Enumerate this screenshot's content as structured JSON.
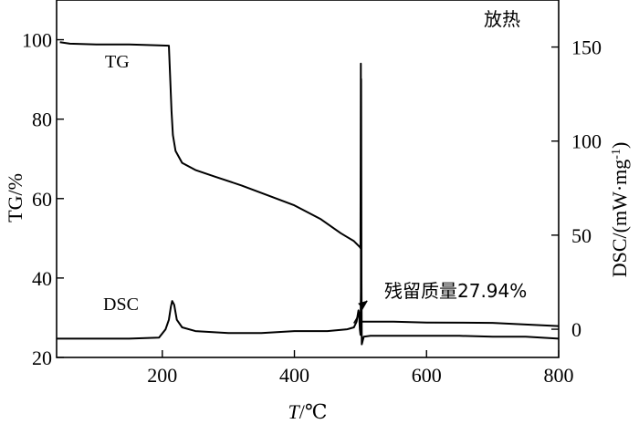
{
  "chart_data": {
    "type": "line",
    "xlabel": {
      "italic": "T",
      "rest": "/℃"
    },
    "ylabel_left": "TG/%",
    "ylabel_right": "DSC/(mW·mg",
    "ylabel_right_sup": "-1",
    "ylabel_right_close": ")",
    "xlim": [
      40,
      800
    ],
    "ylim_left": [
      20,
      110
    ],
    "ylim_right": [
      -15,
      175
    ],
    "x_ticks": [
      200,
      400,
      600,
      800
    ],
    "y_left_ticks": [
      20,
      40,
      60,
      80,
      100
    ],
    "y_right_ticks": [
      0,
      50,
      100,
      150
    ],
    "exo_label": "放热",
    "series": [
      {
        "name": "TG",
        "axis": "left",
        "points": [
          [
            45,
            99.4
          ],
          [
            60,
            99.0
          ],
          [
            100,
            98.8
          ],
          [
            150,
            98.8
          ],
          [
            195,
            98.6
          ],
          [
            210,
            98.5
          ],
          [
            212,
            90.0
          ],
          [
            214,
            82.0
          ],
          [
            216,
            76.0
          ],
          [
            220,
            72.0
          ],
          [
            230,
            69.0
          ],
          [
            250,
            67.2
          ],
          [
            280,
            65.5
          ],
          [
            320,
            63.3
          ],
          [
            360,
            60.8
          ],
          [
            400,
            58.3
          ],
          [
            440,
            54.8
          ],
          [
            470,
            51.3
          ],
          [
            490,
            49.3
          ],
          [
            499,
            47.8
          ],
          [
            500,
            47.5
          ],
          [
            500.5,
            94.0
          ],
          [
            501,
            29.0
          ],
          [
            505,
            29.0
          ],
          [
            550,
            29.0
          ],
          [
            600,
            28.8
          ],
          [
            700,
            28.7
          ],
          [
            800,
            27.9
          ]
        ]
      },
      {
        "name": "DSC",
        "axis": "right",
        "points": [
          [
            40,
            -5
          ],
          [
            100,
            -5
          ],
          [
            150,
            -5
          ],
          [
            195,
            -4.5
          ],
          [
            205,
            0
          ],
          [
            210,
            5
          ],
          [
            213,
            12
          ],
          [
            215,
            15
          ],
          [
            218,
            13
          ],
          [
            222,
            5
          ],
          [
            230,
            1
          ],
          [
            250,
            -1
          ],
          [
            300,
            -2
          ],
          [
            350,
            -2
          ],
          [
            400,
            -1
          ],
          [
            450,
            -1
          ],
          [
            480,
            0
          ],
          [
            490,
            1
          ],
          [
            494,
            4
          ],
          [
            496,
            8
          ],
          [
            497,
            10
          ],
          [
            498,
            8
          ],
          [
            499,
            0
          ],
          [
            500,
            -3
          ],
          [
            500.5,
            20
          ],
          [
            501,
            133
          ],
          [
            501.5,
            25
          ],
          [
            502,
            -8
          ],
          [
            505,
            -4
          ],
          [
            515,
            -3.5
          ],
          [
            550,
            -3.5
          ],
          [
            600,
            -3.5
          ],
          [
            650,
            -3.5
          ],
          [
            700,
            -4
          ],
          [
            750,
            -4
          ],
          [
            800,
            -5
          ]
        ]
      }
    ],
    "annotations": {
      "tg_label": "TG",
      "dsc_label": "DSC",
      "residual_label": "残留质量27.94%"
    }
  }
}
